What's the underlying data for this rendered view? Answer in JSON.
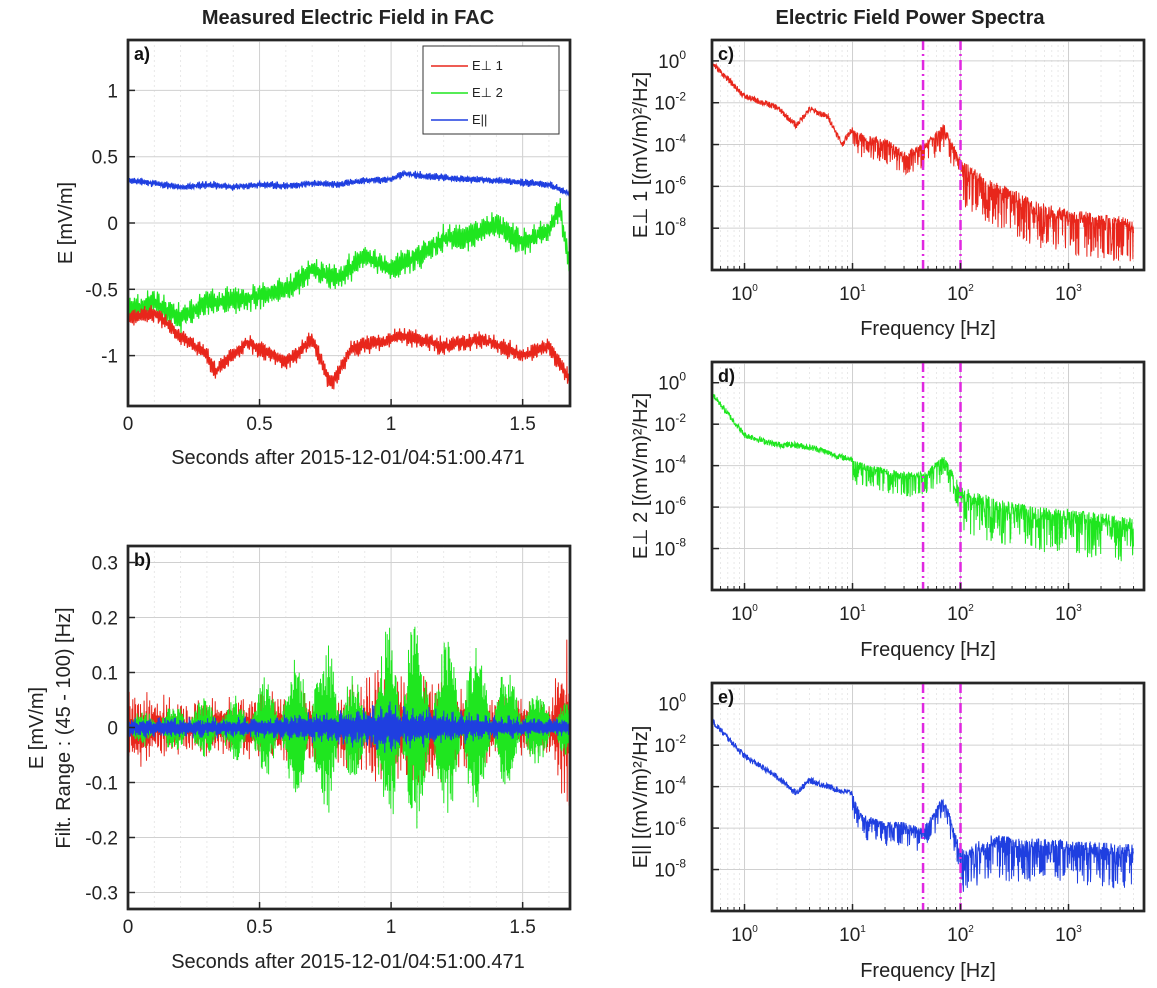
{
  "chart_data": [
    {
      "panel": "a)",
      "type": "line",
      "title": "Measured Electric Field in FAC",
      "xlabel": "Seconds after 2015-12-01/04:51:00.471",
      "ylabel": "E [mV/m]",
      "xlim": [
        0,
        1.68
      ],
      "ylim": [
        -1.38,
        1.38
      ],
      "xticks": [
        "0",
        "0.5",
        "1",
        "1.5"
      ],
      "xtick_values": [
        0,
        0.5,
        1,
        1.5
      ],
      "yticks": [
        "-1",
        "-0.5",
        "0",
        "0.5",
        "1"
      ],
      "ytick_values": [
        -1,
        -0.5,
        0,
        0.5,
        1
      ],
      "grid": true,
      "legend_position": "top-right",
      "series": [
        {
          "name": "E⊥ 1",
          "color": "#e8261b",
          "x": [
            0,
            0.1,
            0.2,
            0.3,
            0.33,
            0.45,
            0.6,
            0.7,
            0.77,
            0.85,
            0.95,
            1.05,
            1.2,
            1.35,
            1.5,
            1.6,
            1.68
          ],
          "y": [
            -0.72,
            -0.68,
            -0.85,
            -1.0,
            -1.12,
            -0.9,
            -1.05,
            -0.88,
            -1.22,
            -0.95,
            -0.9,
            -0.85,
            -0.93,
            -0.88,
            -1.0,
            -0.93,
            -1.18
          ]
        },
        {
          "name": "E⊥ 2",
          "color": "#1fe61f",
          "x": [
            0,
            0.1,
            0.2,
            0.3,
            0.4,
            0.5,
            0.6,
            0.7,
            0.8,
            0.9,
            1.0,
            1.1,
            1.2,
            1.3,
            1.4,
            1.5,
            1.6,
            1.64,
            1.68
          ],
          "y": [
            -0.65,
            -0.6,
            -0.72,
            -0.6,
            -0.58,
            -0.55,
            -0.5,
            -0.35,
            -0.42,
            -0.25,
            -0.35,
            -0.25,
            -0.12,
            -0.1,
            0.0,
            -0.15,
            -0.05,
            0.12,
            -0.35
          ]
        },
        {
          "name": "E||",
          "color": "#1f3fe0",
          "x": [
            0,
            0.1,
            0.2,
            0.3,
            0.4,
            0.5,
            0.6,
            0.7,
            0.8,
            0.9,
            1.0,
            1.05,
            1.2,
            1.4,
            1.6,
            1.68
          ],
          "y": [
            0.32,
            0.3,
            0.27,
            0.29,
            0.27,
            0.29,
            0.28,
            0.3,
            0.29,
            0.32,
            0.33,
            0.37,
            0.34,
            0.32,
            0.29,
            0.22
          ]
        }
      ]
    },
    {
      "panel": "b)",
      "type": "line",
      "title": "",
      "xlabel": "Seconds after 2015-12-01/04:51:00.471",
      "ylabel": "E [mV/m]",
      "ylabel2": "Filt. Range : (45 - 100) [Hz]",
      "xlim": [
        0,
        1.68
      ],
      "ylim": [
        -0.33,
        0.33
      ],
      "xticks": [
        "0",
        "0.5",
        "1",
        "1.5"
      ],
      "xtick_values": [
        0,
        0.5,
        1,
        1.5
      ],
      "yticks": [
        "-0.3",
        "-0.2",
        "-0.1",
        "0",
        "0.1",
        "0.2",
        "0.3"
      ],
      "ytick_values": [
        -0.3,
        -0.2,
        -0.1,
        0,
        0.1,
        0.2,
        0.3
      ],
      "grid": true,
      "series": [
        {
          "name": "E⊥ 1",
          "color": "#e8261b",
          "x": [
            0,
            0.2,
            0.4,
            0.6,
            0.8,
            1.0,
            1.2,
            1.4,
            1.6,
            1.68
          ],
          "amplitude": [
            0.08,
            0.05,
            0.06,
            0.07,
            0.07,
            0.12,
            0.1,
            0.06,
            0.05,
            0.2
          ]
        },
        {
          "name": "E⊥ 2",
          "color": "#1fe61f",
          "x": [
            0,
            0.2,
            0.4,
            0.55,
            0.77,
            0.9,
            1.03,
            1.15,
            1.27,
            1.4,
            1.55,
            1.68
          ],
          "amplitude": [
            0.03,
            0.05,
            0.06,
            0.1,
            0.17,
            0.06,
            0.25,
            0.15,
            0.18,
            0.12,
            0.07,
            0.05
          ]
        },
        {
          "name": "E||",
          "color": "#1f3fe0",
          "x": [
            0,
            0.5,
            0.8,
            1.0,
            1.2,
            1.5,
            1.68
          ],
          "amplitude": [
            0.02,
            0.02,
            0.035,
            0.05,
            0.035,
            0.02,
            0.02
          ]
        }
      ]
    },
    {
      "panel": "c)",
      "type": "line",
      "title": "Electric Field Power Spectra",
      "xlabel": "Frequency [Hz]",
      "ylabel": "E⊥ 1 [(mV/m)²/Hz]",
      "x_scale": "log",
      "y_scale": "log",
      "xlim": [
        0.5,
        5000
      ],
      "ylim": [
        1e-10,
        10.0
      ],
      "xticks": [
        "10^0",
        "10^1",
        "10^2",
        "10^3"
      ],
      "yticks": [
        "10^0",
        "10^-2",
        "10^-4",
        "10^-6",
        "10^-8"
      ],
      "vlines_hz": [
        45,
        100
      ],
      "vline_color": "#e028e0",
      "grid": true,
      "series": [
        {
          "name": "E⊥ 1",
          "color": "#e8261b",
          "x": [
            0.5,
            1,
            2,
            3,
            4,
            6,
            8,
            10,
            13,
            20,
            30,
            45,
            70,
            100,
            200,
            500,
            1000,
            2000,
            4000
          ],
          "y": [
            0.8,
            0.02,
            0.006,
            0.0008,
            0.005,
            0.002,
            0.0001,
            0.0006,
            0.0003,
            0.0002,
            5e-05,
            0.0001,
            0.001,
            2e-05,
            2e-06,
            2e-07,
            8e-08,
            5e-08,
            3e-08
          ]
        }
      ]
    },
    {
      "panel": "d)",
      "type": "line",
      "title": "",
      "xlabel": "Frequency [Hz]",
      "ylabel": "E⊥ 2 [(mV/m)²/Hz]",
      "x_scale": "log",
      "y_scale": "log",
      "xlim": [
        0.5,
        5000
      ],
      "ylim": [
        1e-10,
        10.0
      ],
      "xticks": [
        "10^0",
        "10^1",
        "10^2",
        "10^3"
      ],
      "yticks": [
        "10^0",
        "10^-2",
        "10^-4",
        "10^-6",
        "10^-8"
      ],
      "vlines_hz": [
        45,
        100
      ],
      "vline_color": "#e028e0",
      "grid": true,
      "series": [
        {
          "name": "E⊥ 2",
          "color": "#1fe61f",
          "x": [
            0.5,
            1,
            2,
            3,
            5,
            7,
            10,
            15,
            20,
            30,
            45,
            70,
            100,
            200,
            500,
            1000,
            2000,
            4000
          ],
          "y": [
            0.3,
            0.003,
            0.001,
            0.001,
            0.0006,
            0.0003,
            0.0002,
            0.0001,
            8e-05,
            5e-05,
            5e-05,
            0.0003,
            1e-05,
            3e-06,
            1e-06,
            8e-07,
            5e-07,
            3e-07
          ]
        }
      ]
    },
    {
      "panel": "e)",
      "type": "line",
      "title": "",
      "xlabel": "Frequency [Hz]",
      "ylabel": "E|| [(mV/m)²/Hz]",
      "x_scale": "log",
      "y_scale": "log",
      "xlim": [
        0.5,
        5000
      ],
      "ylim": [
        1e-10,
        10.0
      ],
      "xticks": [
        "10^0",
        "10^1",
        "10^2",
        "10^3"
      ],
      "yticks": [
        "10^0",
        "10^-2",
        "10^-4",
        "10^-6",
        "10^-8"
      ],
      "vlines_hz": [
        45,
        100
      ],
      "vline_color": "#e028e0",
      "grid": true,
      "series": [
        {
          "name": "E||",
          "color": "#1f3fe0",
          "x": [
            0.5,
            1,
            2,
            3,
            4,
            6,
            8,
            10,
            12,
            20,
            30,
            45,
            70,
            100,
            200,
            500,
            1000,
            2000,
            4000
          ],
          "y": [
            0.15,
            0.003,
            0.0003,
            5e-05,
            0.0002,
            0.0001,
            6e-05,
            5e-05,
            5e-06,
            2e-06,
            2e-06,
            1e-06,
            4e-05,
            1e-07,
            5e-07,
            3e-07,
            3e-07,
            2e-07,
            2e-07
          ]
        }
      ]
    }
  ]
}
